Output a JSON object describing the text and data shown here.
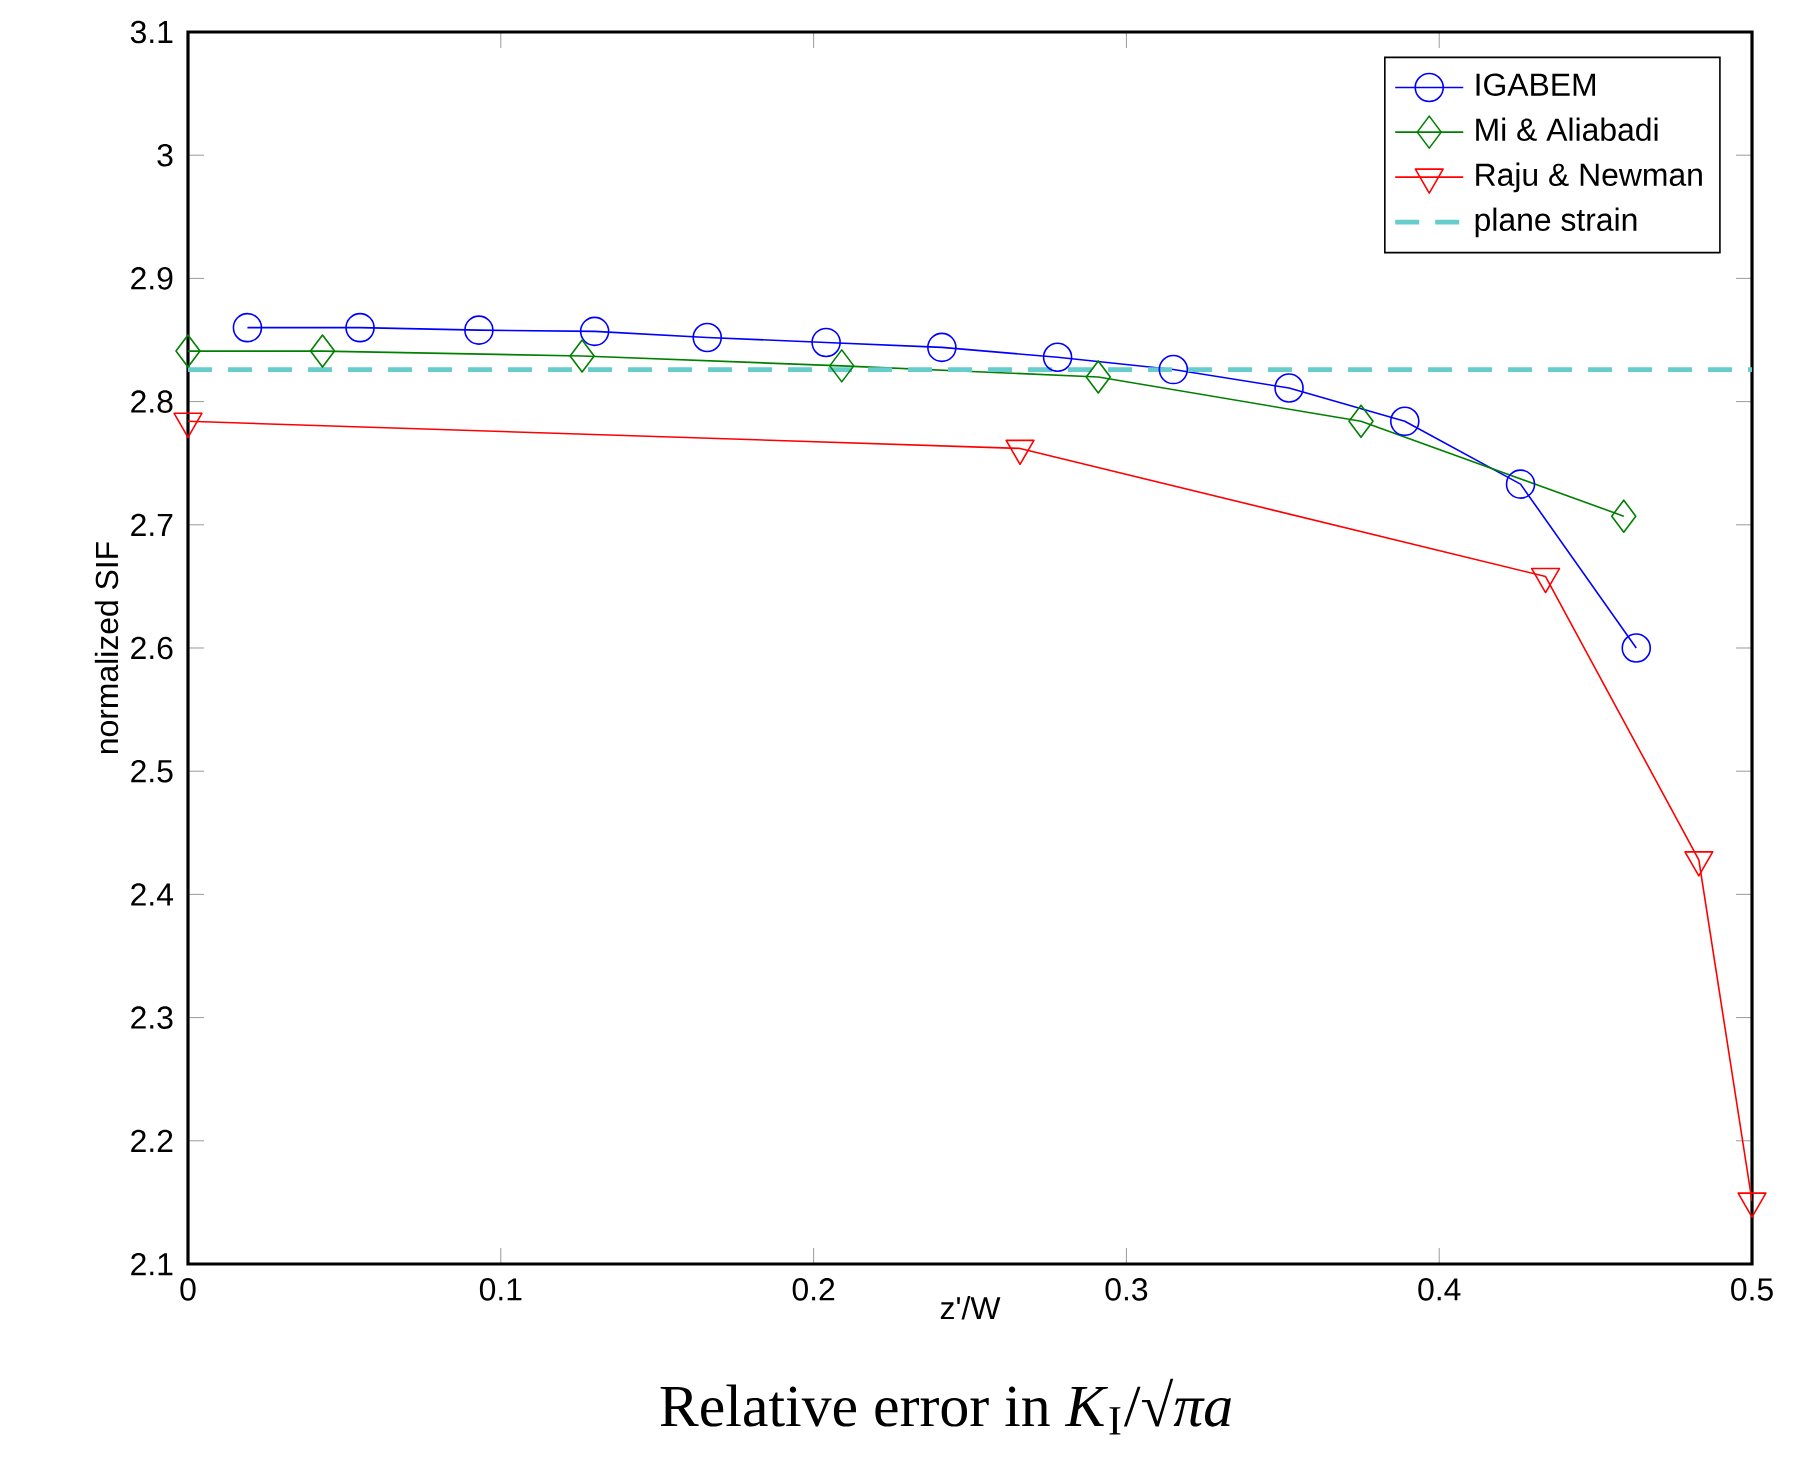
{
  "chart_data": {
    "type": "line",
    "xlabel": "z'/W",
    "ylabel": "normalized SIF",
    "annotations": [
      "Relative error in *K*$_{I}$/√*πa*"
    ],
    "xlim": [
      0,
      0.5
    ],
    "ylim": [
      2.1,
      3.1
    ],
    "xticks": [
      0,
      0.1,
      0.2,
      0.3,
      0.4,
      0.5
    ],
    "yticks": [
      2.1,
      2.2,
      2.3,
      2.4,
      2.5,
      2.6,
      2.7,
      2.8,
      2.9,
      3,
      3.1
    ],
    "legend": "top right",
    "series": [
      {
        "name": "IGABEM",
        "color": "#0000ff",
        "marker": "circle",
        "line_style": "solid",
        "x": [
          0.019,
          0.055,
          0.093,
          0.13,
          0.166,
          0.204,
          0.241,
          0.278,
          0.315,
          0.352,
          0.389,
          0.426,
          0.463
        ],
        "values": [
          2.86,
          2.86,
          2.858,
          2.857,
          2.852,
          2.848,
          2.844,
          2.836,
          2.826,
          2.811,
          2.784,
          2.733,
          2.6
        ]
      },
      {
        "name": "Mi & Aliabadi",
        "color": "#008000",
        "marker": "diamond",
        "line_style": "solid",
        "x": [
          0.0,
          0.043,
          0.126,
          0.209,
          0.291,
          0.375,
          0.459
        ],
        "values": [
          2.841,
          2.841,
          2.837,
          2.829,
          2.82,
          2.784,
          2.707
        ]
      },
      {
        "name": "Raju & Newman",
        "color": "#ff0000",
        "marker": "triangle",
        "line_style": "solid",
        "x": [
          0.0,
          0.266,
          0.434,
          0.483,
          0.5
        ],
        "values": [
          2.784,
          2.762,
          2.658,
          2.428,
          2.151
        ]
      },
      {
        "name": "plane strain",
        "color": "#66cccc",
        "marker": "none",
        "line_style": "dashed",
        "x": [
          0.0,
          0.5
        ],
        "values": [
          2.826,
          2.826
        ]
      }
    ]
  }
}
